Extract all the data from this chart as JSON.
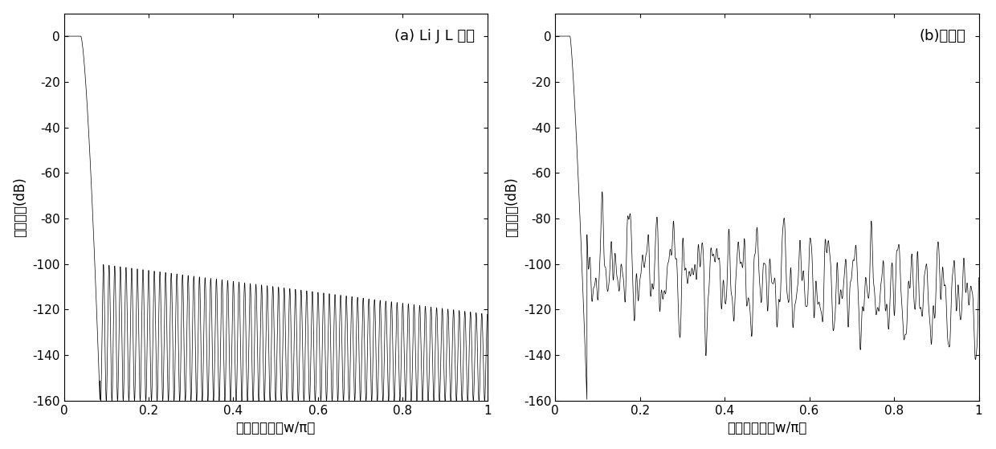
{
  "title_a": "(a) Li J L 方法",
  "title_b": "(b)本方法",
  "ylabel": "幅度响应(dB)",
  "xlabel": "归一化频率（w/π）",
  "ylim": [
    -160,
    10
  ],
  "xlim": [
    0,
    1
  ],
  "yticks": [
    0,
    -20,
    -40,
    -60,
    -80,
    -100,
    -120,
    -140,
    -160
  ],
  "xticks": [
    0,
    0.2,
    0.4,
    0.6,
    0.8,
    1.0
  ],
  "xtick_labels": [
    "0",
    "0.2",
    "0.4",
    "0.6",
    "0.8",
    "1"
  ],
  "ytick_labels": [
    "0",
    "-20",
    "-40",
    "-60",
    "-80",
    "-100",
    "-120",
    "-140",
    "-160"
  ],
  "bg_color": "#ffffff",
  "line_color": "#000000",
  "figsize": [
    12.4,
    5.59
  ],
  "dpi": 100
}
